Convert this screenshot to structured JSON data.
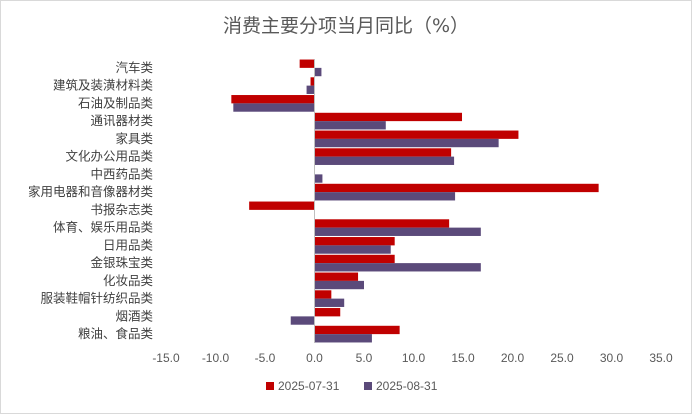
{
  "chart_data": {
    "type": "bar",
    "orientation": "horizontal",
    "title": "消费主要分项当月同比（%）",
    "categories": [
      "汽车类",
      "建筑及装潢材料类",
      "石油及制品类",
      "通讯器材类",
      "家具类",
      "文化办公用品类",
      "中西药品类",
      "家用电器和音像器材类",
      "书报杂志类",
      "体育、娱乐用品类",
      "日用品类",
      "金银珠宝类",
      "化妆品类",
      "服装鞋帽针纺织品类",
      "烟酒类",
      "粮油、食品类"
    ],
    "series": [
      {
        "name": "2025-07-31",
        "color": "#c00000",
        "values": [
          -1.5,
          -0.4,
          -8.4,
          14.9,
          20.6,
          13.8,
          null,
          28.7,
          -6.6,
          13.6,
          8.1,
          8.1,
          4.4,
          1.7,
          2.6,
          8.6
        ]
      },
      {
        "name": "2025-08-31",
        "color": "#5b4a7a",
        "values": [
          0.7,
          -0.8,
          -8.2,
          7.2,
          18.6,
          14.1,
          0.8,
          14.2,
          null,
          16.8,
          7.7,
          16.8,
          5.0,
          3.0,
          -2.4,
          5.8
        ]
      }
    ],
    "xlim": [
      -15,
      35
    ],
    "xticks": [
      "-15.0",
      "-10.0",
      "-5.0",
      "0.0",
      "5.0",
      "10.0",
      "15.0",
      "20.0",
      "25.0",
      "30.0",
      "35.0"
    ],
    "grid": false,
    "legend": "bottom"
  }
}
